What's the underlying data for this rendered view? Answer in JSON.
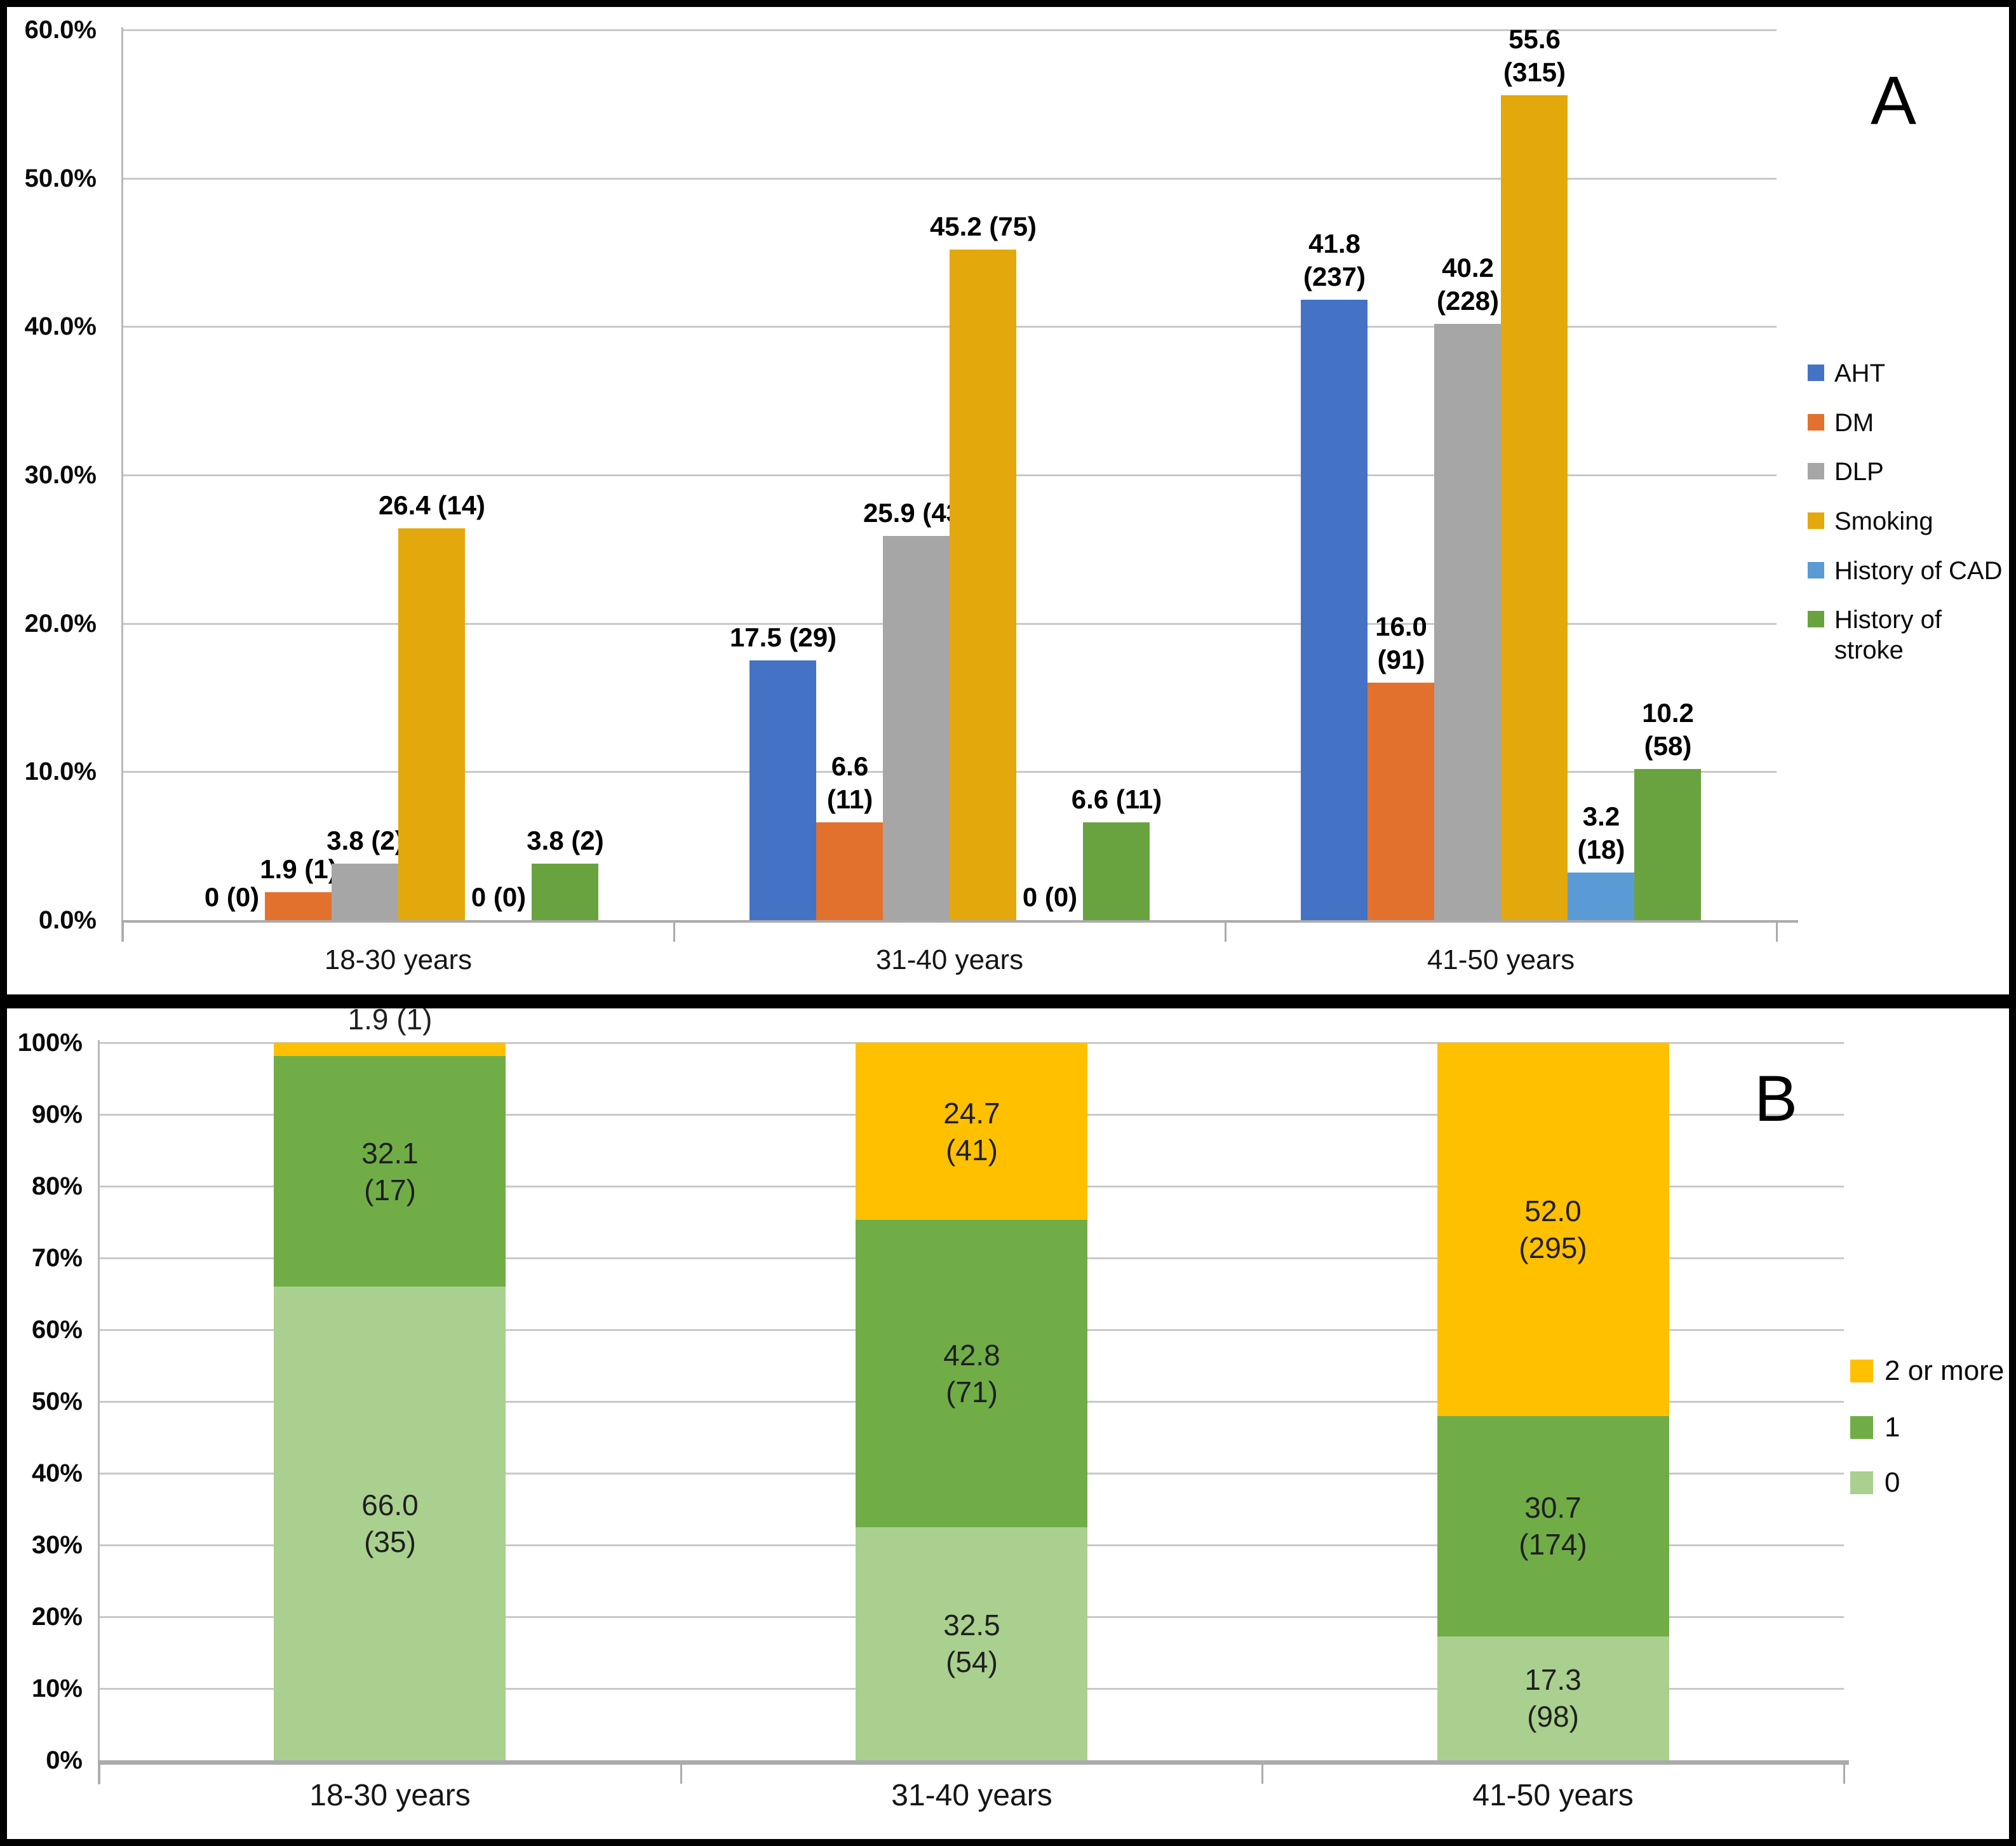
{
  "figure": {
    "panel_a_marker": "A",
    "panel_b_marker": "B",
    "background": "#FFFFFF",
    "border_color": "#000000",
    "grid_color": "#C9C9C9",
    "axis_color": "#ABABAB"
  },
  "chart_data": [
    {
      "id": "A",
      "type": "bar",
      "title": "",
      "xlabel": "",
      "ylabel": "",
      "grid": true,
      "legend_position": "right",
      "ylim": [
        0,
        60
      ],
      "ytick_step": 10,
      "ytick_labels": [
        "0.0%",
        "10.0%",
        "20.0%",
        "30.0%",
        "40.0%",
        "50.0%",
        "60.0%"
      ],
      "categories": [
        "18-30 years",
        "31-40 years",
        "41-50 years"
      ],
      "series": [
        {
          "name": "AHT",
          "color": "#4472C4",
          "values": [
            0,
            17.5,
            41.8
          ],
          "counts": [
            0,
            29,
            237
          ],
          "labels": [
            [
              "0 (0)"
            ],
            [
              "17.5 (29)"
            ],
            [
              "41.8",
              "(237)"
            ]
          ]
        },
        {
          "name": "DM",
          "color": "#E2712E",
          "values": [
            1.9,
            6.6,
            16.0
          ],
          "counts": [
            1,
            11,
            91
          ],
          "labels": [
            [
              "1.9 (1)"
            ],
            [
              "6.6",
              "(11)"
            ],
            [
              "16.0",
              "(91)"
            ]
          ]
        },
        {
          "name": "DLP",
          "color": "#A6A6A6",
          "values": [
            3.8,
            25.9,
            40.2
          ],
          "counts": [
            2,
            43,
            228
          ],
          "labels": [
            [
              "3.8 (2)"
            ],
            [
              "25.9 (43)"
            ],
            [
              "40.2",
              "(228)"
            ]
          ]
        },
        {
          "name": "Smoking",
          "color": "#E3A80B",
          "values": [
            26.4,
            45.2,
            55.6
          ],
          "counts": [
            14,
            75,
            315
          ],
          "labels": [
            [
              "26.4 (14)"
            ],
            [
              "45.2 (75)"
            ],
            [
              "55.6",
              "(315)"
            ]
          ]
        },
        {
          "name": "History of CAD",
          "color": "#5B9BD5",
          "values": [
            0,
            0,
            3.2
          ],
          "counts": [
            0,
            0,
            18
          ],
          "labels": [
            [
              "0 (0)"
            ],
            [
              "0 (0)"
            ],
            [
              "3.2",
              "(18)"
            ]
          ]
        },
        {
          "name": "History of stroke",
          "color": "#69A33F",
          "values": [
            3.8,
            6.6,
            10.2
          ],
          "counts": [
            2,
            11,
            58
          ],
          "labels": [
            [
              "3.8 (2)"
            ],
            [
              "6.6 (11)"
            ],
            [
              "10.2",
              "(58)"
            ]
          ]
        }
      ],
      "legend_items": [
        {
          "lines": [
            "AHT"
          ],
          "color": "#4472C4"
        },
        {
          "lines": [
            "DM"
          ],
          "color": "#E2712E"
        },
        {
          "lines": [
            "DLP"
          ],
          "color": "#A6A6A6"
        },
        {
          "lines": [
            "Smoking"
          ],
          "color": "#E3A80B"
        },
        {
          "lines": [
            "History of CAD"
          ],
          "color": "#5B9BD5"
        },
        {
          "lines": [
            "History of",
            "stroke"
          ],
          "color": "#69A33F"
        }
      ]
    },
    {
      "id": "B",
      "type": "stacked-bar",
      "title": "",
      "xlabel": "",
      "ylabel": "",
      "grid": true,
      "legend_position": "right",
      "ylim": [
        0,
        100
      ],
      "ytick_step": 10,
      "ytick_labels": [
        "0%",
        "10%",
        "20%",
        "30%",
        "40%",
        "50%",
        "60%",
        "70%",
        "80%",
        "90%",
        "100%"
      ],
      "categories": [
        "18-30 years",
        "31-40 years",
        "41-50 years"
      ],
      "series": [
        {
          "name": "0",
          "color": "#A9D08E",
          "values": [
            66.0,
            32.5,
            17.3
          ],
          "counts": [
            35,
            54,
            98
          ],
          "labels": [
            [
              "66.0",
              "(35)"
            ],
            [
              "32.5",
              "(54)"
            ],
            [
              "17.3",
              "(98)"
            ]
          ],
          "label_pos": [
            "inside",
            "inside",
            "inside"
          ]
        },
        {
          "name": "1",
          "color": "#70AD47",
          "values": [
            32.1,
            42.8,
            30.7
          ],
          "counts": [
            17,
            71,
            174
          ],
          "labels": [
            [
              "32.1",
              "(17)"
            ],
            [
              "42.8",
              "(71)"
            ],
            [
              "30.7",
              "(174)"
            ]
          ],
          "label_pos": [
            "inside",
            "inside",
            "inside"
          ]
        },
        {
          "name": "2 or more",
          "color": "#FFC000",
          "values": [
            1.9,
            24.7,
            52.0
          ],
          "counts": [
            1,
            41,
            295
          ],
          "labels": [
            [
              "1.9 (1)"
            ],
            [
              "24.7",
              "(41)"
            ],
            [
              "52.0",
              "(295)"
            ]
          ],
          "label_pos": [
            "above",
            "inside",
            "inside"
          ]
        }
      ],
      "legend_items": [
        {
          "lines": [
            "2 or more"
          ],
          "color": "#FFC000"
        },
        {
          "lines": [
            "1"
          ],
          "color": "#70AD47"
        },
        {
          "lines": [
            "0"
          ],
          "color": "#A9D08E"
        }
      ]
    }
  ]
}
